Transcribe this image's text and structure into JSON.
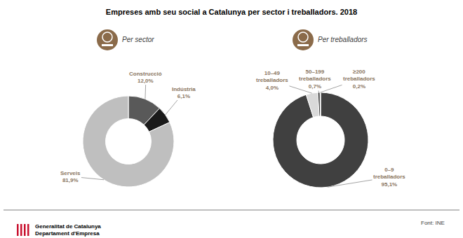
{
  "title": "Empreses amb seu social a Catalunya per sector i treballadors. 2018",
  "source": "Font: INE",
  "footer": [
    "Generalitat de Catalunya",
    "Departament d'Empresa"
  ],
  "chart_data": [
    {
      "type": "donut",
      "subtitle": "Per sector",
      "categories": [
        "Construcció",
        "Indústria",
        "Serveis"
      ],
      "values": [
        12.0,
        6.1,
        81.9
      ],
      "value_labels": [
        "12,0%",
        "6,1%",
        "81,9%"
      ],
      "colors": [
        "#595959",
        "#1a1a1a",
        "#bfbfbf"
      ],
      "data_labels": true
    },
    {
      "type": "donut",
      "subtitle": "Per treballadors",
      "categories": [
        "0–9 treballadors",
        "10–49 treballadors",
        "50–199 treballadors",
        "≥200 treballadors"
      ],
      "values": [
        95.1,
        4.0,
        0.7,
        0.2
      ],
      "value_labels": [
        "95,1%",
        "4,0%",
        "0,7%",
        "0,2%"
      ],
      "colors": [
        "#404040",
        "#d9d9d9",
        "#1a1a1a",
        "#a6a6a6"
      ],
      "data_labels": true
    }
  ]
}
